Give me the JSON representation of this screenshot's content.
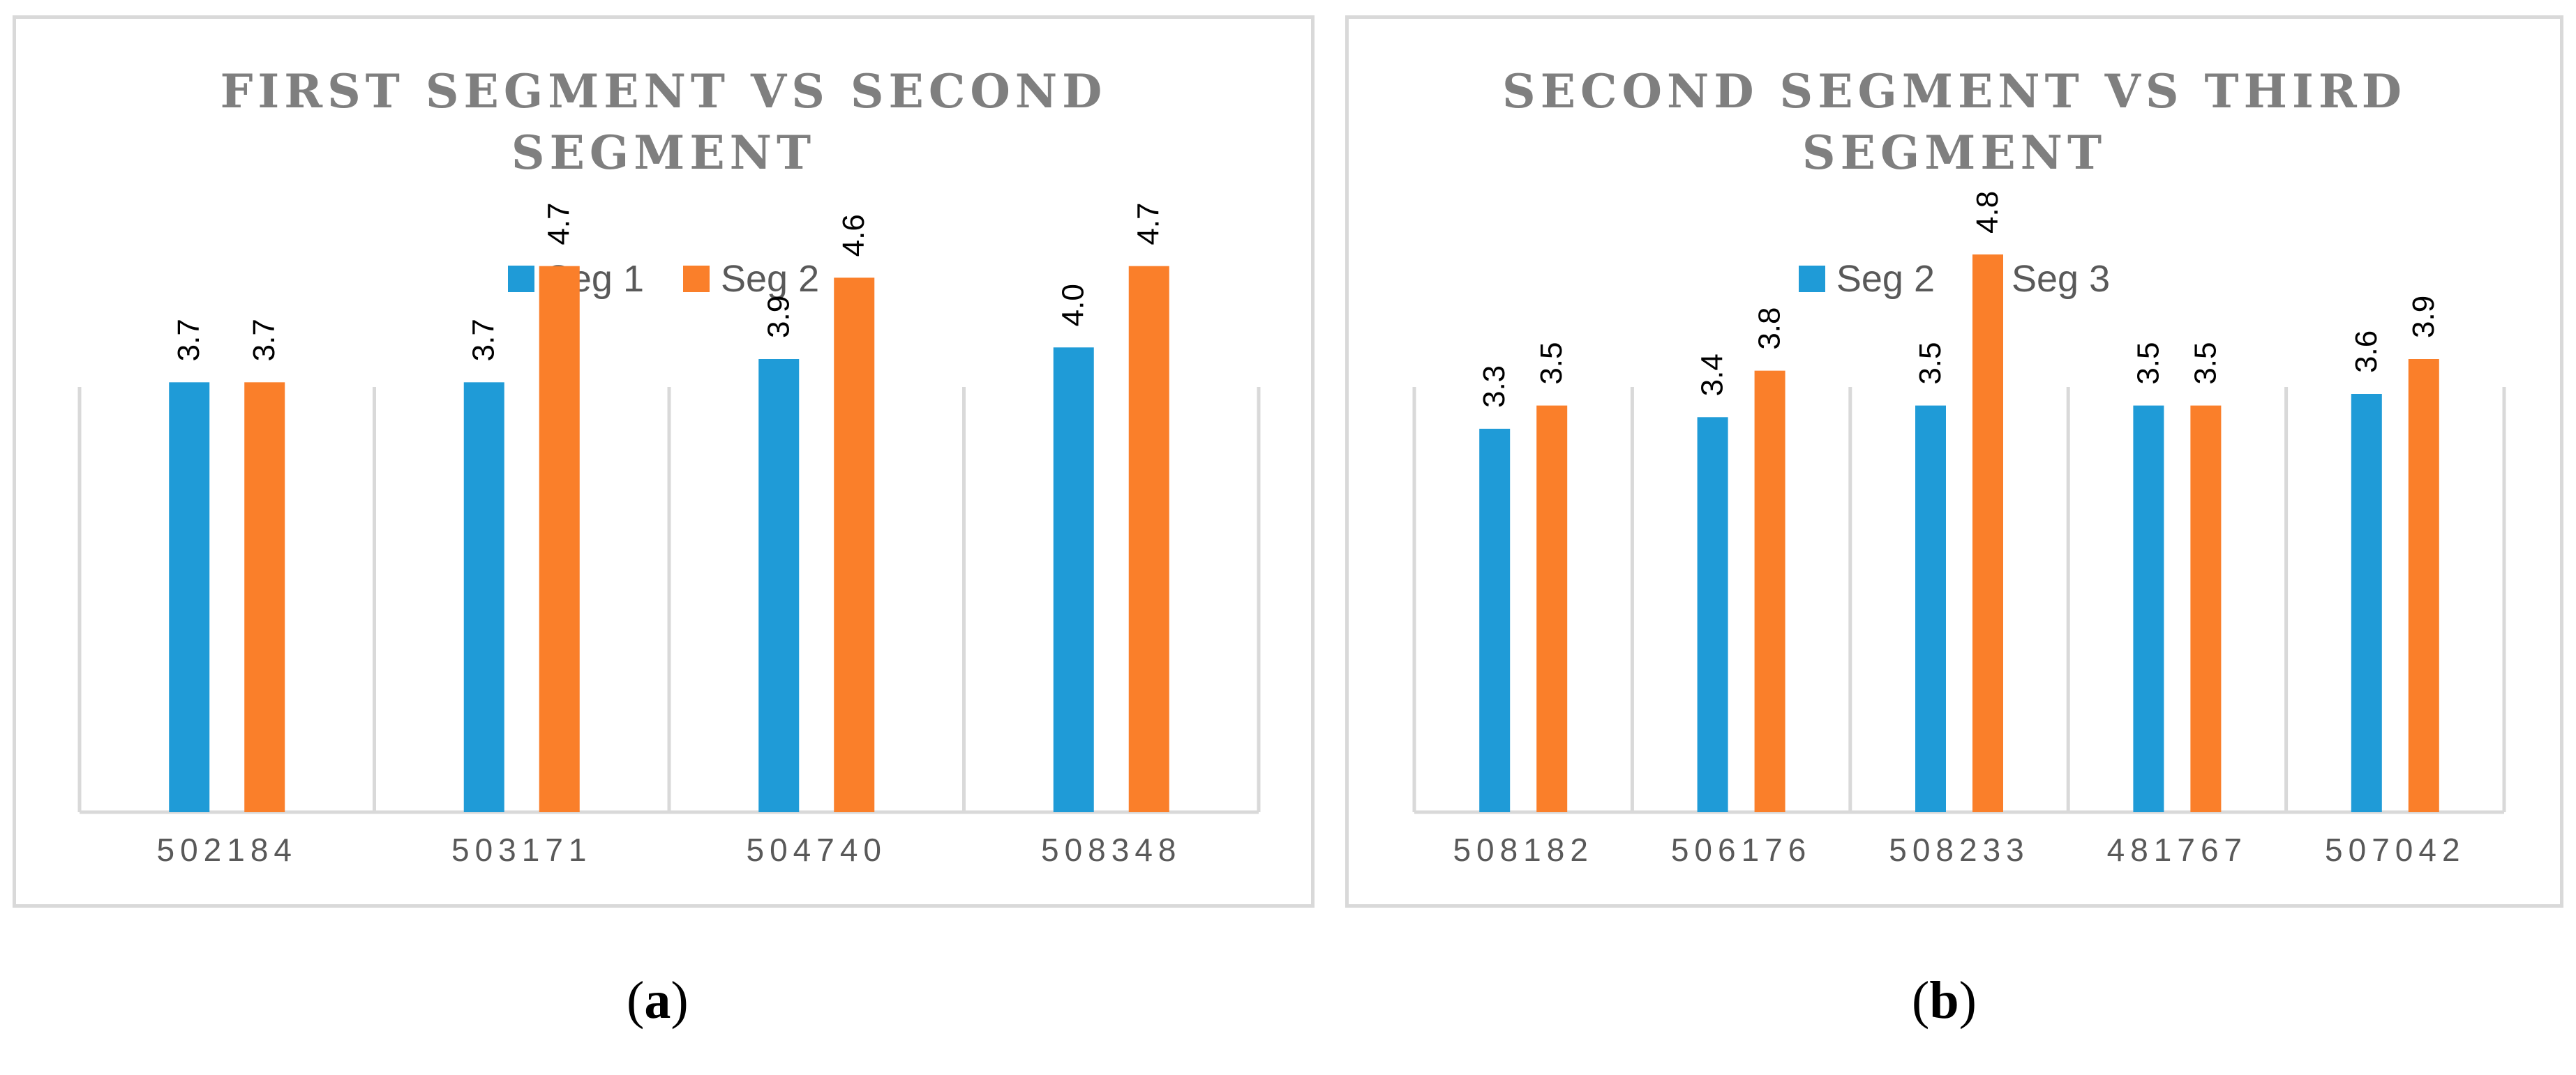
{
  "colors": {
    "series1": "#1f9bd7",
    "series2": "#fa7f2a",
    "axis": "#d9d9d9",
    "text": "#595959",
    "title": "#7f7f7f"
  },
  "captions": {
    "a": "a",
    "b": "b"
  },
  "chart_data": [
    {
      "type": "bar",
      "title": "FIRST SEGMENT VS SECOND SEGMENT",
      "categories": [
        "502184",
        "503171",
        "504740",
        "508348"
      ],
      "series": [
        {
          "name": "Seg 1",
          "values": [
            3.7,
            3.7,
            3.9,
            4.0
          ]
        },
        {
          "name": "Seg 2",
          "values": [
            3.7,
            4.7,
            4.6,
            4.7
          ]
        }
      ],
      "value_labels": [
        [
          "3.7",
          "3.7",
          "3.9",
          "4.0"
        ],
        [
          "3.7",
          "4.7",
          "4.6",
          "4.7"
        ]
      ],
      "ylim": [
        0,
        6
      ],
      "grid": false,
      "legend": "top-center",
      "data_labels": "rotated-vertical"
    },
    {
      "type": "bar",
      "title": "SECOND SEGMENT VS THIRD SEGMENT",
      "categories": [
        "508182",
        "506176",
        "508233",
        "481767",
        "507042"
      ],
      "series": [
        {
          "name": "Seg 2",
          "values": [
            3.3,
            3.4,
            3.5,
            3.5,
            3.6
          ]
        },
        {
          "name": "Seg 3",
          "values": [
            3.5,
            3.8,
            4.8,
            3.5,
            3.9
          ]
        }
      ],
      "value_labels": [
        [
          "3.3",
          "3.4",
          "3.5",
          "3.5",
          "3.6"
        ],
        [
          "3.5",
          "3.8",
          "4.8",
          "3.5",
          "3.9"
        ]
      ],
      "ylim": [
        0,
        6
      ],
      "grid": false,
      "legend": "top-center",
      "data_labels": "rotated-vertical"
    }
  ]
}
